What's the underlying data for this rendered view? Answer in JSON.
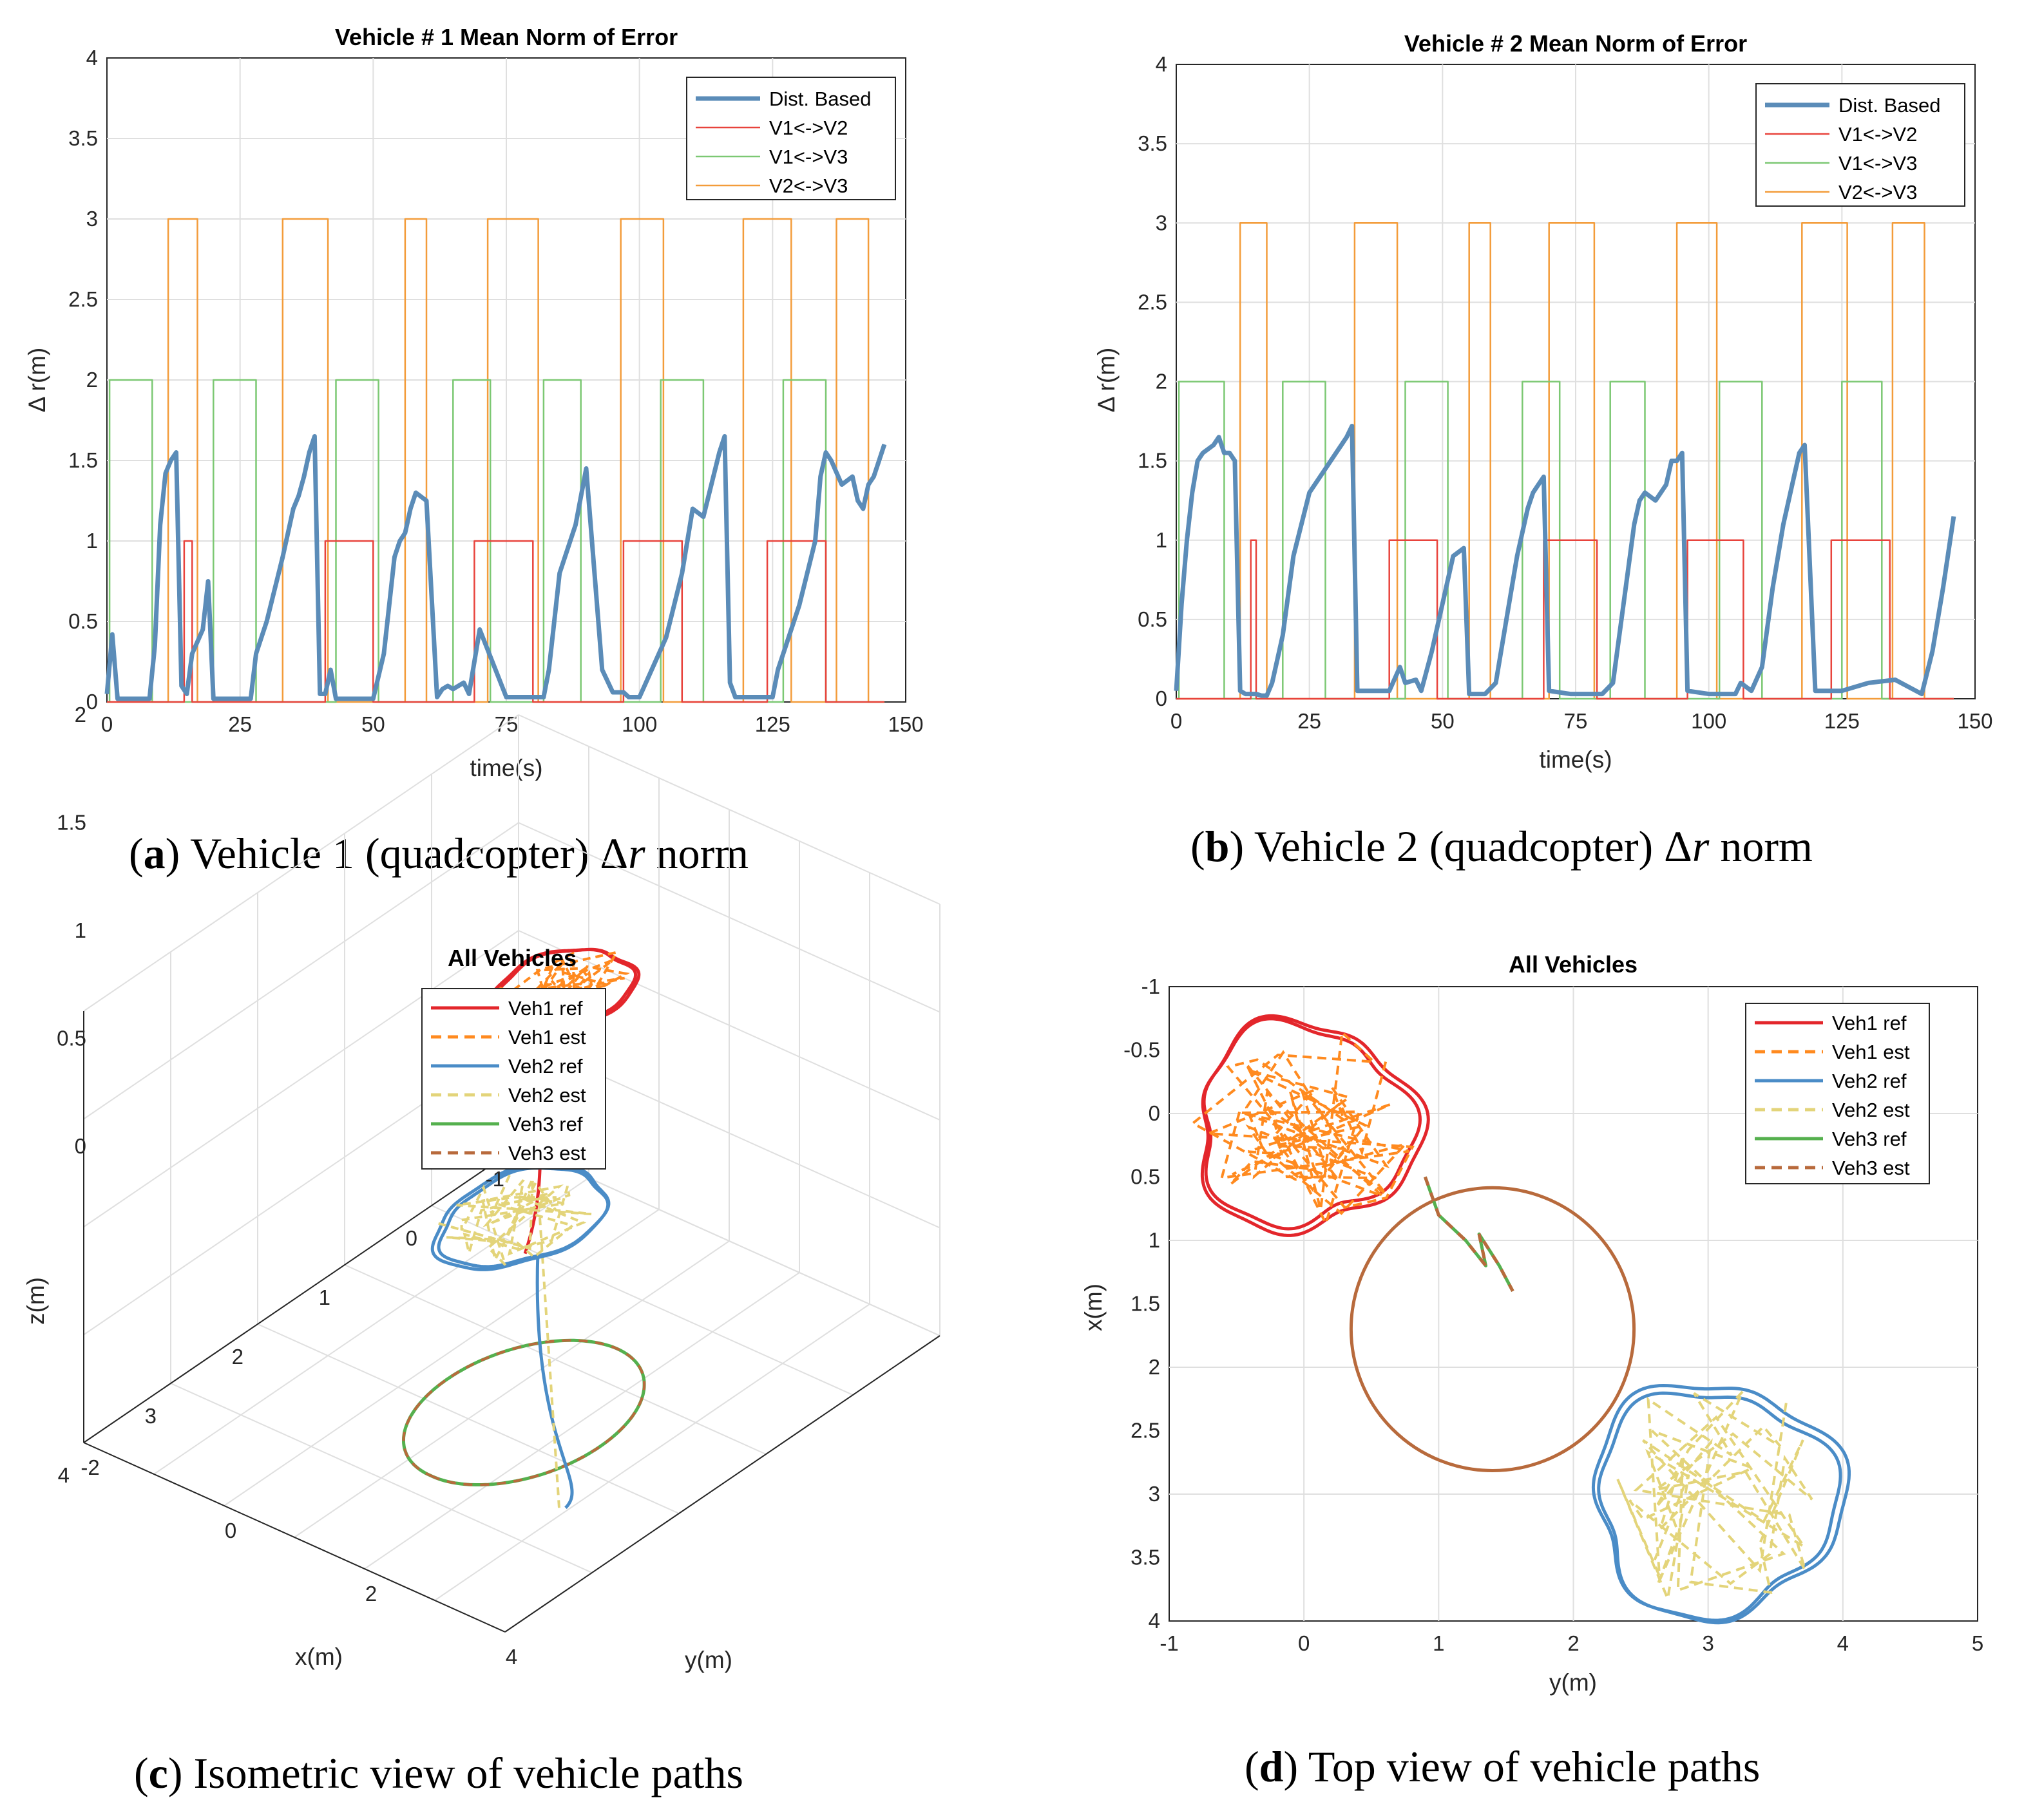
{
  "colors": {
    "dist": "#5b8cb8",
    "v1v2": "#e8433c",
    "v1v3": "#7cc873",
    "v2v3": "#f39c3a",
    "veh1_ref": "#e3262b",
    "veh1_est": "#ff8a1f",
    "veh2_ref": "#4a8cc7",
    "veh2_est": "#e3d47a",
    "veh3_ref": "#55b04e",
    "veh3_est": "#b86a3c"
  },
  "panel_a": {
    "caption_letter": "a",
    "caption_text": " Vehicle 1 (quadcopter) Δ",
    "caption_var": "r",
    "caption_tail": " norm"
  },
  "panel_b": {
    "caption_letter": "b",
    "caption_text": " Vehicle 2 (quadcopter) Δ",
    "caption_var": "r",
    "caption_tail": " norm"
  },
  "panel_c": {
    "caption_letter": "c",
    "caption_text": " Isometric view of vehicle paths"
  },
  "panel_d": {
    "caption_letter": "d",
    "caption_text": " Top view of vehicle paths"
  },
  "chart_data": [
    {
      "id": "a",
      "type": "line",
      "title": "Vehicle # 1 Mean Norm of Error",
      "xlabel": "time(s)",
      "ylabel": "Δ r(m)",
      "xlim": [
        0,
        150
      ],
      "ylim": [
        0,
        4
      ],
      "xticks": [
        0,
        25,
        50,
        75,
        100,
        125,
        150
      ],
      "yticks": [
        0,
        0.5,
        1,
        1.5,
        2,
        2.5,
        3,
        3.5,
        4
      ],
      "grid": true,
      "legend_position": "top-right",
      "series": [
        {
          "name": "Dist. Based",
          "color_key": "dist",
          "x": [
            0,
            1,
            2,
            4,
            8,
            9,
            10,
            11,
            12,
            13,
            14,
            15,
            16,
            18,
            19,
            20,
            21,
            22,
            27,
            28,
            30,
            33,
            35,
            36,
            37,
            38,
            39,
            40,
            41,
            42,
            43,
            45,
            49,
            50,
            52,
            54,
            55,
            56,
            57,
            58,
            60,
            62,
            63,
            64,
            65,
            66,
            67,
            68,
            70,
            75,
            80,
            82,
            83,
            84,
            85,
            88,
            90,
            93,
            95,
            96,
            97,
            98,
            99,
            100,
            105,
            108,
            110,
            112,
            115,
            116,
            117,
            118,
            120,
            121,
            122,
            123,
            124,
            125,
            126,
            130,
            133,
            134,
            135,
            136,
            138,
            140,
            141,
            142,
            143,
            144,
            145,
            146
          ],
          "y": [
            0.05,
            0.42,
            0.02,
            0.02,
            0.02,
            0.35,
            1.1,
            1.42,
            1.5,
            1.55,
            0.1,
            0.05,
            0.3,
            0.45,
            0.75,
            0.02,
            0.02,
            0.02,
            0.02,
            0.3,
            0.5,
            0.9,
            1.2,
            1.28,
            1.4,
            1.55,
            1.65,
            0.05,
            0.05,
            0.2,
            0.02,
            0.02,
            0.02,
            0.02,
            0.3,
            0.9,
            1.0,
            1.05,
            1.2,
            1.3,
            1.25,
            0.03,
            0.08,
            0.1,
            0.08,
            0.1,
            0.12,
            0.05,
            0.45,
            0.03,
            0.03,
            0.03,
            0.2,
            0.5,
            0.8,
            1.1,
            1.45,
            0.2,
            0.06,
            0.06,
            0.06,
            0.03,
            0.03,
            0.03,
            0.4,
            0.8,
            1.2,
            1.15,
            1.55,
            1.65,
            0.12,
            0.03,
            0.03,
            0.03,
            0.03,
            0.03,
            0.03,
            0.03,
            0.2,
            0.6,
            1.0,
            1.4,
            1.55,
            1.5,
            1.35,
            1.4,
            1.25,
            1.2,
            1.35,
            1.4,
            1.5,
            1.6
          ]
        },
        {
          "name": "V1<->V2",
          "color_key": "v1v2",
          "x": [
            0,
            14.5,
            14.5,
            16,
            16,
            41,
            41,
            50,
            50,
            69,
            69,
            80,
            80,
            97,
            97,
            108,
            108,
            124,
            124,
            135,
            135,
            146
          ],
          "y": [
            0,
            0,
            1,
            1,
            0,
            0,
            1,
            1,
            0,
            0,
            1,
            1,
            0,
            0,
            1,
            1,
            0,
            0,
            1,
            1,
            0,
            0
          ]
        },
        {
          "name": "V1<->V3",
          "color_key": "v1v3",
          "x": [
            0,
            0.5,
            0.5,
            8.5,
            8.5,
            20,
            20,
            28,
            28,
            43,
            43,
            51,
            51,
            65,
            65,
            72,
            72,
            82,
            82,
            89,
            89,
            104,
            104,
            112,
            112,
            127,
            127,
            135,
            135,
            146
          ],
          "y": [
            0,
            0,
            2,
            2,
            0,
            0,
            2,
            2,
            0,
            0,
            2,
            2,
            0,
            0,
            2,
            2,
            0,
            0,
            2,
            2,
            0,
            0,
            2,
            2,
            0,
            0,
            2,
            2,
            0,
            0
          ]
        },
        {
          "name": "V2<->V3",
          "color_key": "v2v3",
          "x": [
            0,
            11.5,
            11.5,
            17,
            17,
            33,
            33,
            41.5,
            41.5,
            56,
            56,
            60,
            60,
            71.5,
            71.5,
            81,
            81,
            96.5,
            96.5,
            104.5,
            104.5,
            119.5,
            119.5,
            128.5,
            128.5,
            137,
            137,
            143,
            143,
            146
          ],
          "y": [
            0,
            0,
            3,
            3,
            0,
            0,
            3,
            3,
            0,
            0,
            3,
            3,
            0,
            0,
            3,
            3,
            0,
            0,
            3,
            3,
            0,
            0,
            3,
            3,
            0,
            0,
            3,
            3,
            0,
            0
          ]
        }
      ]
    },
    {
      "id": "b",
      "type": "line",
      "title": "Vehicle # 2 Mean Norm of Error",
      "xlabel": "time(s)",
      "ylabel": "Δ r(m)",
      "xlim": [
        0,
        150
      ],
      "ylim": [
        0,
        4
      ],
      "xticks": [
        0,
        25,
        50,
        75,
        100,
        125,
        150
      ],
      "yticks": [
        0,
        0.5,
        1,
        1.5,
        2,
        2.5,
        3,
        3.5,
        4
      ],
      "grid": true,
      "legend_position": "top-right",
      "series": [
        {
          "name": "Dist. Based",
          "color_key": "dist",
          "x": [
            0,
            1,
            2,
            3,
            4,
            5,
            7,
            8,
            9,
            10,
            11,
            12,
            13,
            15,
            16,
            17,
            18,
            20,
            22,
            25,
            28,
            30,
            31,
            32,
            33,
            34,
            40,
            42,
            43,
            45,
            46,
            48,
            50,
            52,
            54,
            55,
            56,
            57,
            58,
            60,
            62,
            64,
            66,
            67,
            68,
            69,
            70,
            74,
            78,
            80,
            82,
            84,
            86,
            87,
            88,
            90,
            92,
            93,
            94,
            95,
            96,
            100,
            105,
            106,
            108,
            110,
            112,
            114,
            116,
            117,
            118,
            120,
            125,
            130,
            135,
            140,
            142,
            144,
            146
          ],
          "y": [
            0.05,
            0.6,
            1.0,
            1.3,
            1.5,
            1.55,
            1.6,
            1.65,
            1.55,
            1.55,
            1.5,
            0.05,
            0.03,
            0.03,
            0.02,
            0.02,
            0.1,
            0.4,
            0.9,
            1.3,
            1.45,
            1.55,
            1.6,
            1.65,
            1.72,
            0.05,
            0.05,
            0.2,
            0.1,
            0.12,
            0.05,
            0.3,
            0.6,
            0.9,
            0.95,
            0.03,
            0.03,
            0.03,
            0.03,
            0.1,
            0.5,
            0.9,
            1.2,
            1.3,
            1.35,
            1.4,
            0.05,
            0.03,
            0.03,
            0.03,
            0.1,
            0.6,
            1.1,
            1.25,
            1.3,
            1.25,
            1.35,
            1.5,
            1.5,
            1.55,
            0.05,
            0.03,
            0.03,
            0.1,
            0.05,
            0.2,
            0.7,
            1.1,
            1.4,
            1.55,
            1.6,
            0.05,
            0.05,
            0.1,
            0.12,
            0.03,
            0.3,
            0.7,
            1.15
          ]
        },
        {
          "name": "V1<->V2",
          "color_key": "v1v2",
          "x": [
            0,
            14,
            14,
            15,
            15,
            40,
            40,
            49,
            49,
            69,
            69,
            79,
            79,
            96,
            96,
            106.5,
            106.5,
            123,
            123,
            134,
            134,
            146
          ],
          "y": [
            0,
            0,
            1,
            1,
            0,
            0,
            1,
            1,
            0,
            0,
            1,
            1,
            0,
            0,
            1,
            1,
            0,
            0,
            1,
            1,
            0,
            0
          ]
        },
        {
          "name": "V1<->V3",
          "color_key": "v1v3",
          "x": [
            0,
            0.5,
            0.5,
            9,
            9,
            20,
            20,
            28,
            28,
            43,
            43,
            51,
            51,
            65,
            65,
            72,
            72,
            81.5,
            81.5,
            88,
            88,
            102,
            102,
            110,
            110,
            125,
            125,
            132.5,
            132.5,
            146
          ],
          "y": [
            0,
            0,
            2,
            2,
            0,
            0,
            2,
            2,
            0,
            0,
            2,
            2,
            0,
            0,
            2,
            2,
            0,
            0,
            2,
            2,
            0,
            0,
            2,
            2,
            0,
            0,
            2,
            2,
            0,
            0
          ]
        },
        {
          "name": "V2<->V3",
          "color_key": "v2v3",
          "x": [
            0,
            12,
            12,
            17,
            17,
            33.5,
            33.5,
            41.5,
            41.5,
            55,
            55,
            59,
            59,
            70,
            70,
            78.5,
            78.5,
            94,
            94,
            101.5,
            101.5,
            117.5,
            117.5,
            126,
            126,
            134.5,
            134.5,
            140.5,
            140.5,
            146
          ],
          "y": [
            0,
            0,
            3,
            3,
            0,
            0,
            3,
            3,
            0,
            0,
            3,
            3,
            0,
            0,
            3,
            3,
            0,
            0,
            3,
            3,
            0,
            0,
            3,
            3,
            0,
            0,
            3,
            3,
            0,
            0
          ]
        }
      ]
    },
    {
      "id": "c",
      "type": "line",
      "view": "3d-isometric",
      "title": "All Vehicles",
      "xlabel": "x(m)",
      "ylabel": "y(m)",
      "zlabel": "z(m)",
      "xlim": [
        -1,
        4
      ],
      "ylim": [
        -2,
        4
      ],
      "zlim": [
        0,
        2
      ],
      "xticks": [
        -1,
        0,
        1,
        2,
        3,
        4
      ],
      "yticks": [
        -2,
        0,
        2,
        4
      ],
      "zticks": [
        0,
        0.5,
        1,
        1.5,
        2
      ],
      "grid": true,
      "legend_position": "top-center",
      "legend": [
        "Veh1 ref",
        "Veh1 est",
        "Veh2 ref",
        "Veh2 est",
        "Veh3 ref",
        "Veh3 est"
      ],
      "legend_color_keys": [
        "veh1_ref",
        "veh1_est",
        "veh2_ref",
        "veh2_est",
        "veh3_ref",
        "veh3_est"
      ],
      "legend_dashed": [
        false,
        true,
        false,
        true,
        false,
        true
      ],
      "paths": [
        {
          "name": "Veh1 ref",
          "shape": "hover-loop",
          "center_xy": [
            0.1,
            -0.05
          ],
          "radius": 0.65,
          "altitude": 1.3,
          "start": [
            0.5,
            -0.05,
            0.2
          ]
        },
        {
          "name": "Veh2 ref",
          "shape": "hover-loop",
          "center_xy": [
            3.0,
            3.0
          ],
          "radius": 0.75,
          "altitude": 1.5,
          "start": [
            2.9,
            3.5,
            0.2
          ]
        },
        {
          "name": "Veh3 ref",
          "shape": "ground-circle",
          "center_xy": [
            1.7,
            1.4
          ],
          "radius": 1.05,
          "altitude": 0.0
        }
      ]
    },
    {
      "id": "d",
      "type": "line",
      "view": "top",
      "title": "All Vehicles",
      "xlabel": "y(m)",
      "ylabel": "x(m)",
      "xlim": [
        -1,
        5
      ],
      "ylim": [
        -1,
        4
      ],
      "y_reversed": true,
      "xticks": [
        -1,
        0,
        1,
        2,
        3,
        4,
        5
      ],
      "yticks": [
        -1,
        -0.5,
        0,
        0.5,
        1,
        1.5,
        2,
        2.5,
        3,
        3.5,
        4
      ],
      "grid": true,
      "legend_position": "top-right",
      "legend": [
        "Veh1 ref",
        "Veh1 est",
        "Veh2 ref",
        "Veh2 est",
        "Veh3 ref",
        "Veh3 est"
      ],
      "legend_color_keys": [
        "veh1_ref",
        "veh1_est",
        "veh2_ref",
        "veh2_est",
        "veh3_ref",
        "veh3_est"
      ],
      "legend_dashed": [
        false,
        true,
        false,
        true,
        false,
        true
      ],
      "paths": [
        {
          "name": "Veh1 ref",
          "shape": "loop",
          "center_yx": [
            0.0,
            0.1
          ],
          "radius": 0.8
        },
        {
          "name": "Veh2 ref",
          "shape": "loop",
          "center_yx": [
            3.05,
            3.05
          ],
          "radius": 0.9
        },
        {
          "name": "Veh3 ref",
          "shape": "circle",
          "center_yx": [
            1.4,
            1.7
          ],
          "radius": 1.05
        },
        {
          "name": "Veh3 trail",
          "x": [
            0.9,
            1.0,
            1.2,
            1.35,
            1.3,
            1.45,
            1.55
          ],
          "y": [
            0.5,
            0.8,
            1.0,
            1.2,
            0.95,
            1.2,
            1.4
          ]
        }
      ]
    }
  ]
}
